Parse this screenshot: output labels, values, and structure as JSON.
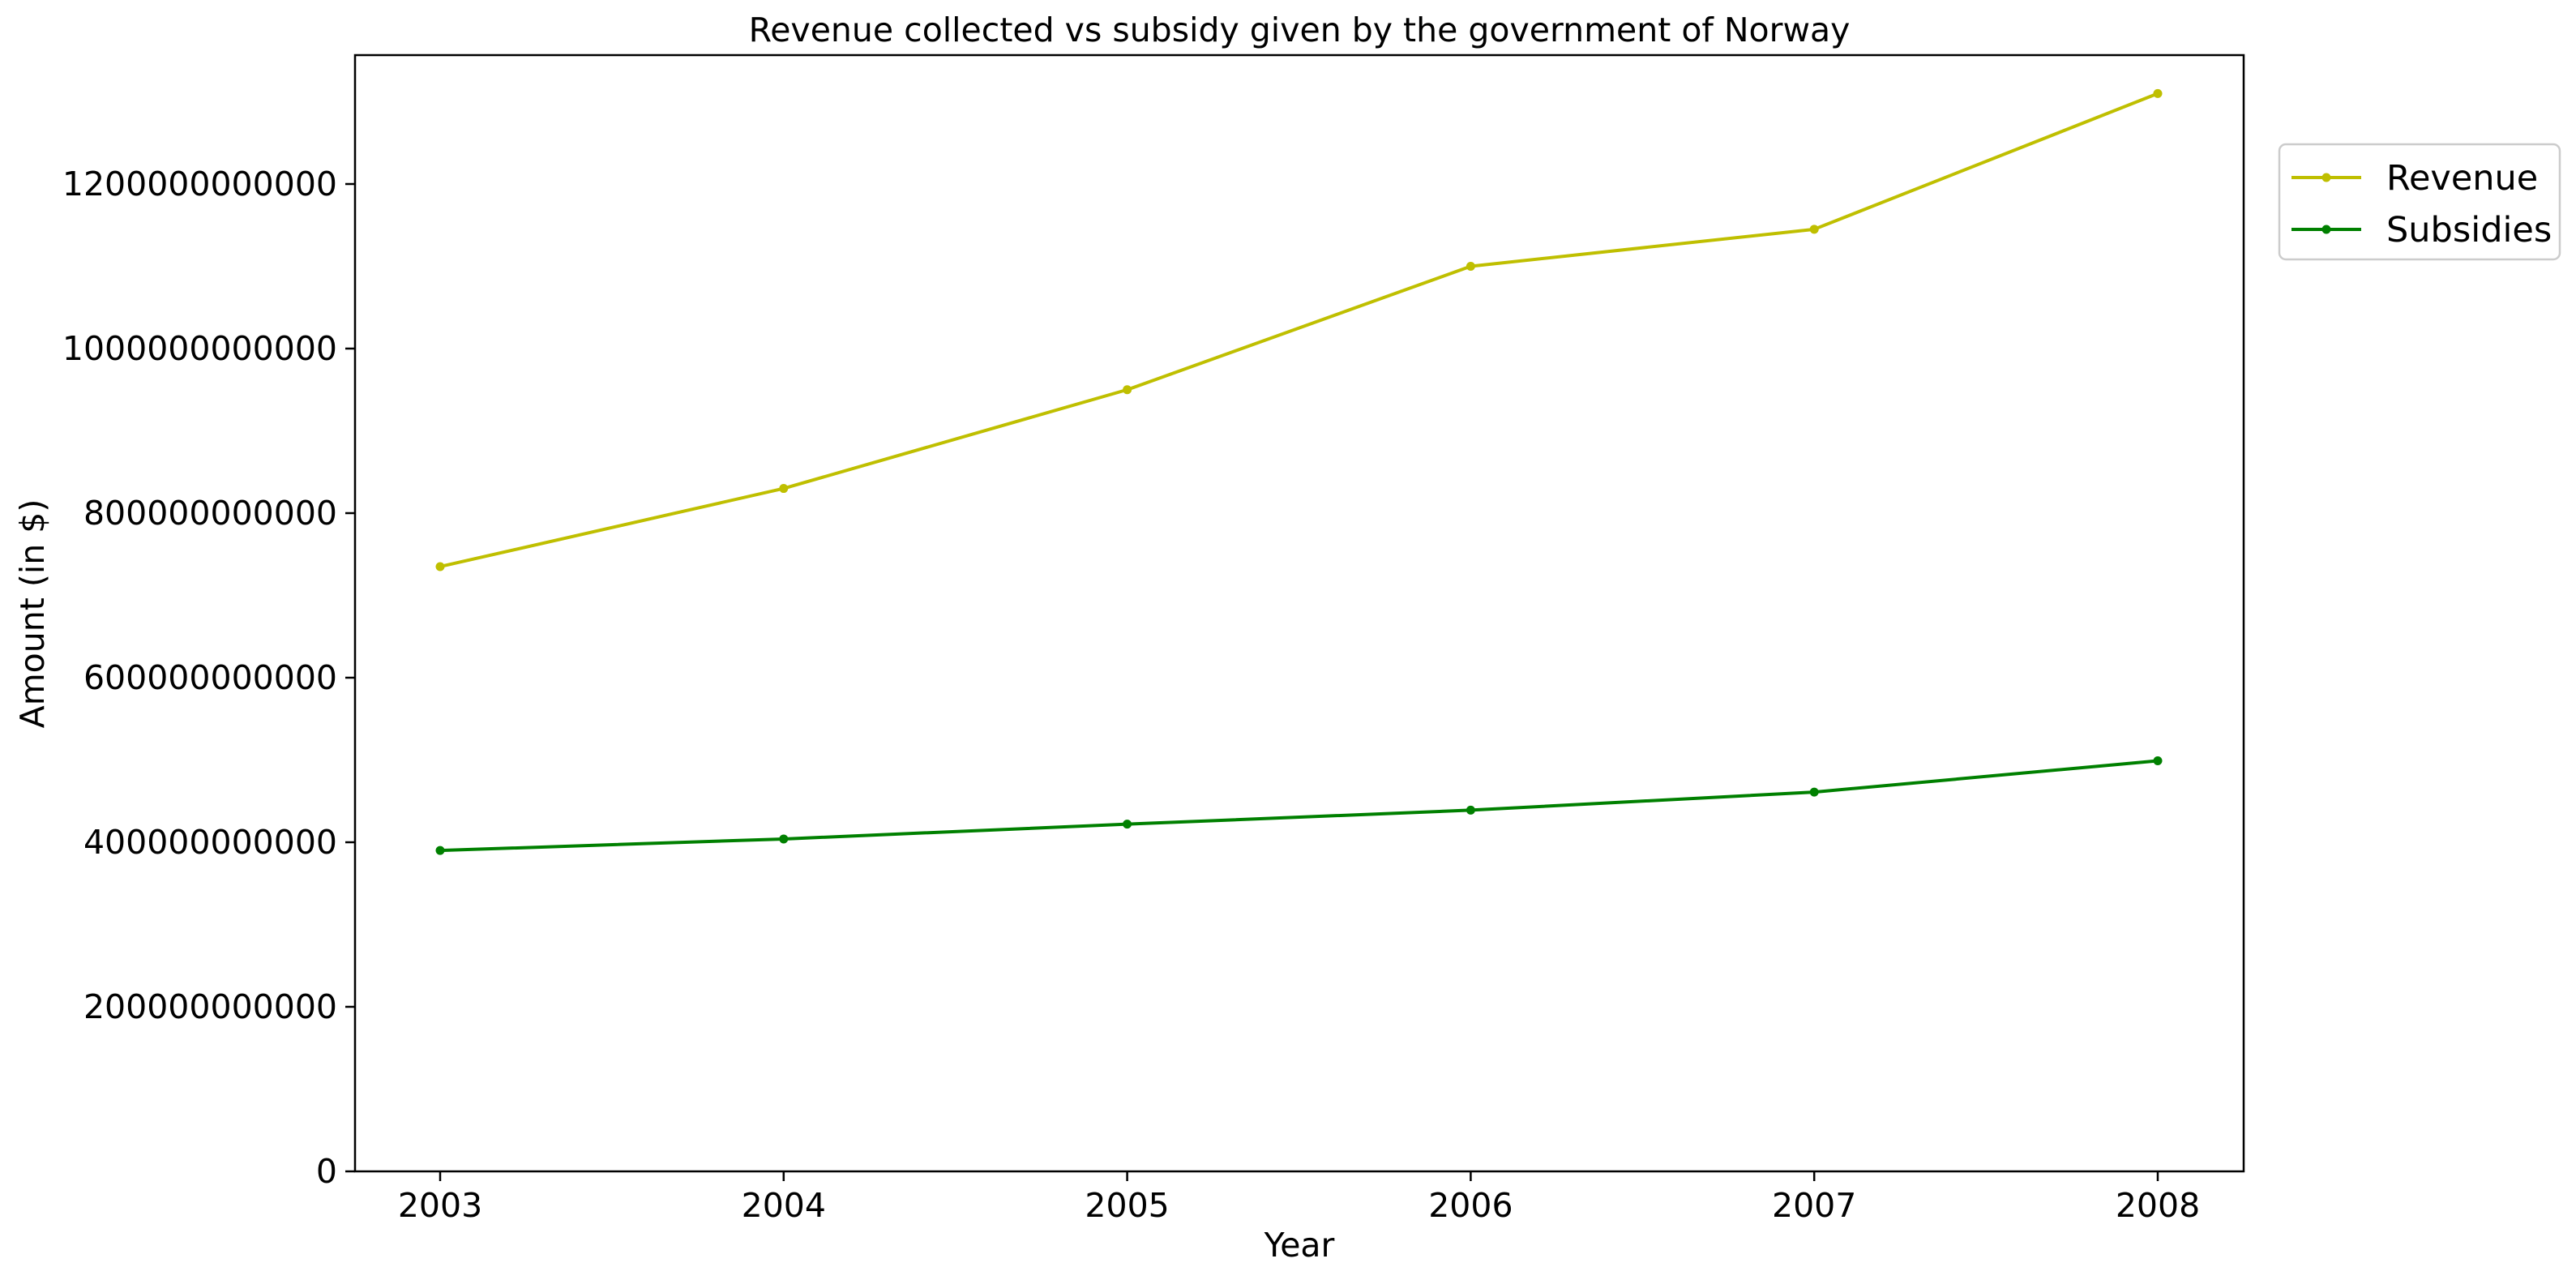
{
  "chart_data": {
    "type": "line",
    "title": "Revenue collected vs subsidy given by the government of Norway",
    "xlabel": "Year",
    "ylabel": "Amount (in $)",
    "x": [
      "2003",
      "2004",
      "2005",
      "2006",
      "2007",
      "2008"
    ],
    "ylim": [
      0,
      1350000000000
    ],
    "yticks": [
      0,
      200000000000,
      400000000000,
      600000000000,
      800000000000,
      1000000000000,
      1200000000000
    ],
    "ytick_labels": [
      "0",
      "200000000000",
      "400000000000",
      "600000000000",
      "800000000000",
      "1000000000000",
      "1200000000000"
    ],
    "grid": false,
    "legend_position": "top-right, outside plot",
    "series": [
      {
        "name": "Revenue",
        "color": "#bfbf00",
        "marker": "circle",
        "values": [
          735000000000,
          830000000000,
          950000000000,
          1100000000000,
          1145000000000,
          1310000000000
        ]
      },
      {
        "name": "Subsidies",
        "color": "#008000",
        "marker": "circle",
        "values": [
          390000000000,
          404000000000,
          422000000000,
          439000000000,
          461000000000,
          499000000000
        ]
      }
    ]
  }
}
